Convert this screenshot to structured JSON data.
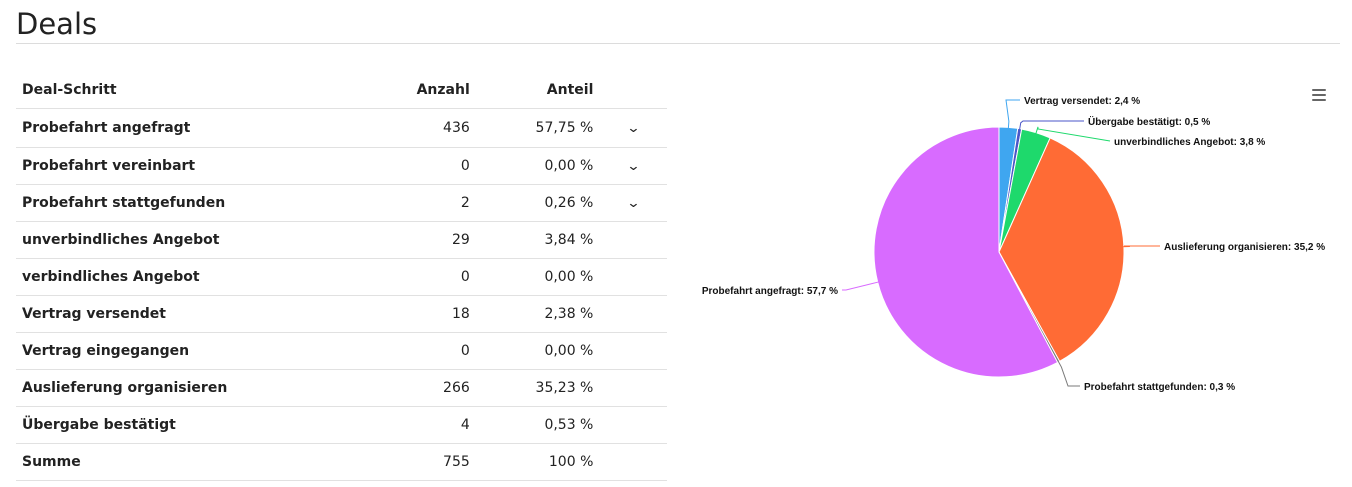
{
  "page": {
    "title": "Deals"
  },
  "table": {
    "headers": {
      "step": "Deal-Schritt",
      "count": "Anzahl",
      "share": "Anteil"
    },
    "rows": [
      {
        "step": "Probefahrt angefragt",
        "count": "436",
        "share": "57,75 %",
        "expandable": true
      },
      {
        "step": "Probefahrt vereinbart",
        "count": "0",
        "share": "0,00 %",
        "expandable": true
      },
      {
        "step": "Probefahrt stattgefunden",
        "count": "2",
        "share": "0,26 %",
        "expandable": true
      },
      {
        "step": "unverbindliches Angebot",
        "count": "29",
        "share": "3,84 %",
        "expandable": false
      },
      {
        "step": "verbindliches Angebot",
        "count": "0",
        "share": "0,00 %",
        "expandable": false
      },
      {
        "step": "Vertrag versendet",
        "count": "18",
        "share": "2,38 %",
        "expandable": false
      },
      {
        "step": "Vertrag eingegangen",
        "count": "0",
        "share": "0,00 %",
        "expandable": false
      },
      {
        "step": "Auslieferung organisieren",
        "count": "266",
        "share": "35,23 %",
        "expandable": false
      },
      {
        "step": "Übergabe bestätigt",
        "count": "4",
        "share": "0,53 %",
        "expandable": false
      }
    ],
    "total": {
      "step": "Summe",
      "count": "755",
      "share": "100 %"
    },
    "expand_glyph": "⌄"
  },
  "chart_data": {
    "type": "pie",
    "slices": [
      {
        "name": "Vertrag versendet",
        "value": 2.4,
        "label": "Vertrag versendet: 2,4 %",
        "color": "#3fa6f0"
      },
      {
        "name": "Übergabe bestätigt",
        "value": 0.5,
        "label": "Übergabe bestätigt: 0,5 %",
        "color": "#4a56c8"
      },
      {
        "name": "unverbindliches Angebot",
        "value": 3.8,
        "label": "unverbindliches Angebot: 3,8 %",
        "color": "#1ed96c"
      },
      {
        "name": "Auslieferung organisieren",
        "value": 35.2,
        "label": "Auslieferung organisieren: 35,2 %",
        "color": "#ff6b35"
      },
      {
        "name": "Probefahrt stattgefunden",
        "value": 0.3,
        "label": "Probefahrt stattgefunden: 0,3 %",
        "color": "#7a7a7a"
      },
      {
        "name": "Probefahrt angefragt",
        "value": 57.7,
        "label": "Probefahrt angefragt: 57,7 %",
        "color": "#d86bff"
      }
    ]
  }
}
